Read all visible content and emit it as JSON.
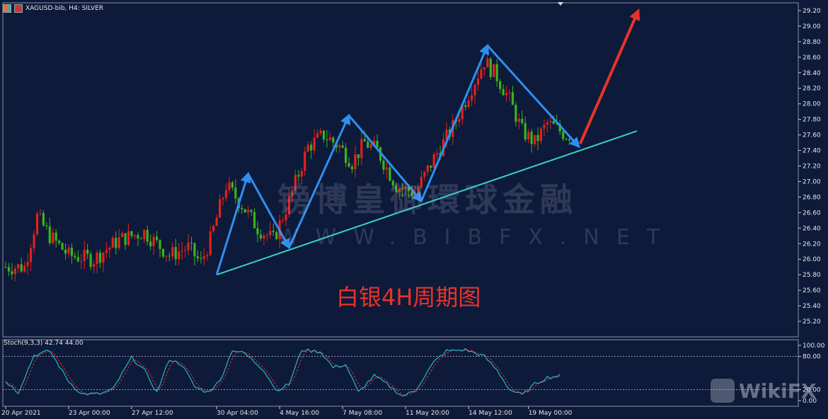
{
  "header": {
    "title": "XAGUSD-bib, H4:  SILVER"
  },
  "stoch_label": "Stoch(9,3,3) 42.74 44.00",
  "watermark": {
    "cn": "镑博皇御環球金融",
    "en": "WWW.BIBFX.NET"
  },
  "annotation": "白银4H周期图",
  "wikifx": "WikiFX",
  "colors": {
    "background": "#0d1a3a",
    "bull": "#e0221e",
    "bear": "#3fb21a",
    "zigzag": "#2f8ff0",
    "trendline": "#38d1cc",
    "projection": "#e8332a",
    "stoch_main": "#2bb7c4",
    "stoch_signal": "#e03030"
  },
  "chart_data": [
    {
      "type": "candlestick",
      "symbol": "XAGUSD-bib",
      "timeframe": "H4",
      "ylim": [
        25.0,
        29.3
      ],
      "y_ticks": [
        "29.20",
        "29.00",
        "28.80",
        "28.60",
        "28.40",
        "28.20",
        "28.00",
        "27.80",
        "27.60",
        "27.40",
        "27.20",
        "27.00",
        "26.80",
        "26.60",
        "26.40",
        "26.20",
        "26.00",
        "25.80",
        "25.60",
        "25.40",
        "25.20"
      ],
      "x_ticks": [
        "20 Apr 2021",
        "23 Apr 00:00",
        "27 Apr 12:00",
        "30 Apr 04:00",
        "4 May 16:00",
        "7 May 08:00",
        "11 May 20:00",
        "14 May 12:00",
        "19 May 00:00"
      ],
      "anchors": [
        [
          0,
          25.9
        ],
        [
          6,
          25.9
        ],
        [
          10,
          26.55
        ],
        [
          14,
          26.3
        ],
        [
          20,
          26.05
        ],
        [
          28,
          26.0
        ],
        [
          36,
          26.25
        ],
        [
          44,
          26.35
        ],
        [
          52,
          26.05
        ],
        [
          58,
          26.15
        ],
        [
          62,
          25.95
        ],
        [
          65,
          26.25
        ],
        [
          70,
          26.95
        ],
        [
          75,
          26.7
        ],
        [
          80,
          26.4
        ],
        [
          85,
          26.25
        ],
        [
          90,
          26.75
        ],
        [
          96,
          27.45
        ],
        [
          101,
          27.6
        ],
        [
          106,
          27.45
        ],
        [
          110,
          27.25
        ],
        [
          114,
          27.5
        ],
        [
          118,
          27.4
        ],
        [
          124,
          26.95
        ],
        [
          130,
          26.85
        ],
        [
          136,
          27.3
        ],
        [
          142,
          27.7
        ],
        [
          146,
          28.05
        ],
        [
          152,
          28.55
        ],
        [
          156,
          28.35
        ],
        [
          160,
          28.05
        ],
        [
          164,
          27.65
        ],
        [
          168,
          27.5
        ],
        [
          172,
          27.75
        ],
        [
          178,
          27.6
        ]
      ],
      "zigzag_points": [
        [
          25.8,
          "30 Apr 04:00"
        ],
        [
          27.1
        ],
        [
          26.15
        ],
        [
          27.85
        ],
        [
          26.75
        ],
        [
          28.75
        ],
        [
          27.45
        ]
      ],
      "trendline": {
        "from": 25.8,
        "to": 27.65
      },
      "projection_target": 29.2
    },
    {
      "type": "line",
      "name": "Stoch(9,3,3)",
      "values_label": "42.74 44.00",
      "ylim": [
        0,
        100
      ],
      "y_ticks": [
        "100.00",
        "80.00",
        "20.00",
        "0.00"
      ],
      "levels": [
        80,
        20
      ],
      "main_anchors": [
        [
          0,
          35
        ],
        [
          4,
          15
        ],
        [
          9,
          82
        ],
        [
          14,
          90
        ],
        [
          20,
          35
        ],
        [
          24,
          12
        ],
        [
          30,
          12
        ],
        [
          34,
          20
        ],
        [
          40,
          78
        ],
        [
          44,
          55
        ],
        [
          48,
          15
        ],
        [
          52,
          75
        ],
        [
          56,
          65
        ],
        [
          60,
          25
        ],
        [
          64,
          15
        ],
        [
          68,
          35
        ],
        [
          72,
          92
        ],
        [
          76,
          85
        ],
        [
          82,
          55
        ],
        [
          86,
          18
        ],
        [
          90,
          30
        ],
        [
          94,
          92
        ],
        [
          100,
          88
        ],
        [
          104,
          60
        ],
        [
          108,
          65
        ],
        [
          112,
          15
        ],
        [
          117,
          45
        ],
        [
          121,
          30
        ],
        [
          126,
          8
        ],
        [
          130,
          18
        ],
        [
          136,
          70
        ],
        [
          140,
          90
        ],
        [
          146,
          92
        ],
        [
          152,
          80
        ],
        [
          156,
          55
        ],
        [
          160,
          20
        ],
        [
          164,
          10
        ],
        [
          168,
          30
        ],
        [
          172,
          42
        ],
        [
          176,
          45
        ]
      ]
    }
  ]
}
